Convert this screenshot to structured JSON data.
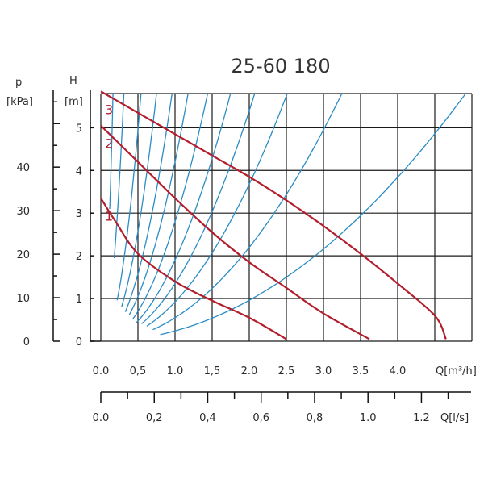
{
  "chart_data": {
    "type": "line",
    "title": "25-60 180",
    "head_axis": {
      "name": "H",
      "unit": "[m]",
      "range": [
        0,
        5.8
      ],
      "ticks": [
        0,
        1,
        2,
        3,
        4,
        5
      ]
    },
    "pressure_axis": {
      "name": "p",
      "unit": "[kPa]",
      "ticks": [
        0,
        10,
        20,
        30,
        40
      ]
    },
    "flow_axis_m3h": {
      "label": "Q[m³/h]",
      "range": [
        0,
        5.0
      ],
      "ticks": [
        {
          "v": 0.0,
          "t": "0.0"
        },
        {
          "v": 0.5,
          "t": "0,5"
        },
        {
          "v": 1.0,
          "t": "1.0"
        },
        {
          "v": 1.5,
          "t": "1,5"
        },
        {
          "v": 2.0,
          "t": "2.0"
        },
        {
          "v": 2.5,
          "t": "2,5"
        },
        {
          "v": 3.0,
          "t": "3.0"
        },
        {
          "v": 3.5,
          "t": "3.5"
        },
        {
          "v": 4.0,
          "t": "4.0"
        }
      ]
    },
    "flow_axis_ls": {
      "label": "Q[l/s]",
      "ticks": [
        {
          "v": 0.0,
          "t": "0.0"
        },
        {
          "v": 0.2,
          "t": "0,2"
        },
        {
          "v": 0.4,
          "t": "0,4"
        },
        {
          "v": 0.6,
          "t": "0,6"
        },
        {
          "v": 0.8,
          "t": "0,8"
        },
        {
          "v": 1.0,
          "t": "1.0"
        },
        {
          "v": 1.2,
          "t": "1.2"
        }
      ]
    },
    "grid": true,
    "pump_curves": [
      {
        "name": "1",
        "points": [
          [
            0,
            3.35
          ],
          [
            0.2,
            2.8
          ],
          [
            0.5,
            2.05
          ],
          [
            1.0,
            1.4
          ],
          [
            1.5,
            0.95
          ],
          [
            2.0,
            0.55
          ],
          [
            2.5,
            0.05
          ]
        ]
      },
      {
        "name": "2",
        "points": [
          [
            0,
            5.05
          ],
          [
            0.5,
            4.2
          ],
          [
            1.0,
            3.35
          ],
          [
            1.5,
            2.55
          ],
          [
            2.0,
            1.85
          ],
          [
            2.5,
            1.25
          ],
          [
            3.0,
            0.65
          ],
          [
            3.62,
            0.05
          ]
        ]
      },
      {
        "name": "3",
        "points": [
          [
            0,
            5.85
          ],
          [
            0.5,
            5.35
          ],
          [
            1.0,
            4.85
          ],
          [
            1.5,
            4.35
          ],
          [
            2.0,
            3.85
          ],
          [
            2.5,
            3.3
          ],
          [
            3.0,
            2.7
          ],
          [
            3.5,
            2.05
          ],
          [
            4.0,
            1.35
          ],
          [
            4.5,
            0.6
          ],
          [
            4.65,
            0.05
          ]
        ]
      }
    ],
    "system_curves": {
      "color": "#2a8cc4",
      "coefficients": [
        215,
        60,
        19.8,
        10.3,
        6.3,
        4.2,
        2.8,
        1.9,
        1.35,
        0.92,
        0.55,
        0.24
      ],
      "q_start": [
        0.12,
        0.18,
        0.22,
        0.28,
        0.33,
        0.38,
        0.43,
        0.48,
        0.55,
        0.62,
        0.7,
        0.8
      ]
    },
    "colors": {
      "pump_curve": "#b31e2d",
      "system_curve": "#2a8cc4",
      "grid": "#1a1a1a"
    }
  }
}
